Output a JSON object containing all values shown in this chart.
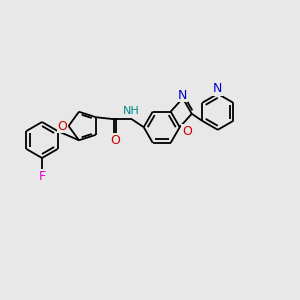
{
  "bg_color": "#e8e8e8",
  "bond_color": "#000000",
  "atom_colors": {
    "F": "#dd00dd",
    "O": "#cc0000",
    "N": "#0000cc",
    "NH": "#008888",
    "C": "#000000"
  },
  "figsize": [
    3.0,
    3.0
  ],
  "dpi": 100
}
